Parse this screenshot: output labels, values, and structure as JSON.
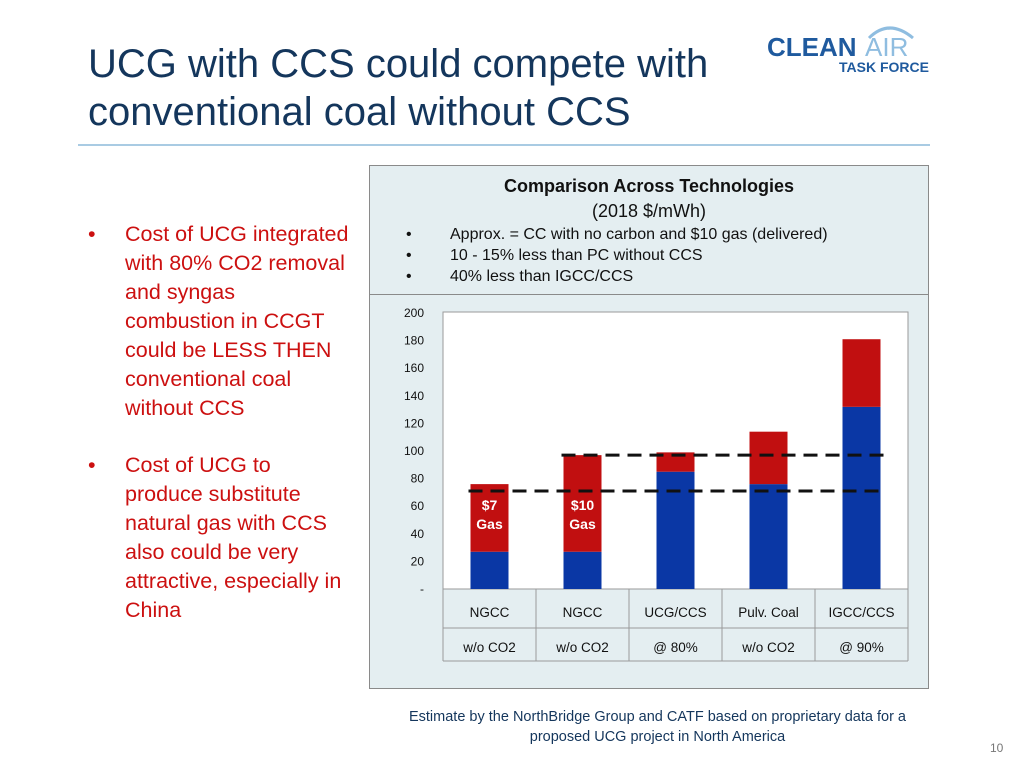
{
  "slide": {
    "title": "UCG with CCS could compete with conventional coal without CCS",
    "page_number": "10",
    "caption": "Estimate by the NorthBridge Group and CATF based on proprietary data for a proposed UCG project in North America"
  },
  "logo": {
    "clean": "CLEAN",
    "air": "AIR",
    "task_force": "TASK FORCE",
    "color_primary": "#1f5a9e",
    "color_accent": "#8fbde0"
  },
  "bullets": [
    {
      "marker": "•",
      "text": "Cost of UCG integrated with 80% CO2 removal and syngas combustion in CCGT could be LESS THEN conventional coal without CCS"
    },
    {
      "marker": "•",
      "text": "Cost of UCG to produce substitute natural gas with CCS also could be very attractive, especially in China"
    }
  ],
  "chart_data": {
    "type": "bar",
    "stacked": true,
    "title": "Comparison Across Technologies",
    "subtitle": "(2018 $/mWh)",
    "notes": [
      "Approx. = CC with no carbon and $10 gas (delivered)",
      "10 - 15% less than PC without CCS",
      "40% less than IGCC/CCS"
    ],
    "categories": [
      "NGCC",
      "NGCC",
      "UCG/CCS",
      "Pulv. Coal",
      "IGCC/CCS"
    ],
    "category_sublabels": [
      "w/o CO2",
      "w/o CO2",
      "@ 80%",
      "w/o CO2",
      "@ 90%"
    ],
    "series": [
      {
        "values": [
          27,
          27,
          85,
          76,
          132
        ],
        "color": "#0a37a5"
      },
      {
        "values": [
          49,
          70,
          14,
          38,
          49
        ],
        "color": "#c10f10"
      }
    ],
    "bar_labels": [
      {
        "category_index": 0,
        "lines": [
          "$7",
          "Gas"
        ]
      },
      {
        "category_index": 1,
        "lines": [
          "$10",
          "Gas"
        ]
      }
    ],
    "reference_lines": [
      {
        "value": 97,
        "from_category": 1,
        "to_category": 4,
        "style": "dashed"
      },
      {
        "value": 71,
        "from_category": 0,
        "to_category": 4,
        "style": "dashed"
      }
    ],
    "yticks": [
      0,
      20,
      40,
      60,
      80,
      100,
      120,
      140,
      160,
      180,
      200
    ],
    "ytick_labels": [
      "-",
      "20",
      "40",
      "60",
      "80",
      "100",
      "120",
      "140",
      "160",
      "180",
      "200"
    ],
    "ylim": [
      0,
      200
    ],
    "grid": false,
    "legend": "none"
  }
}
